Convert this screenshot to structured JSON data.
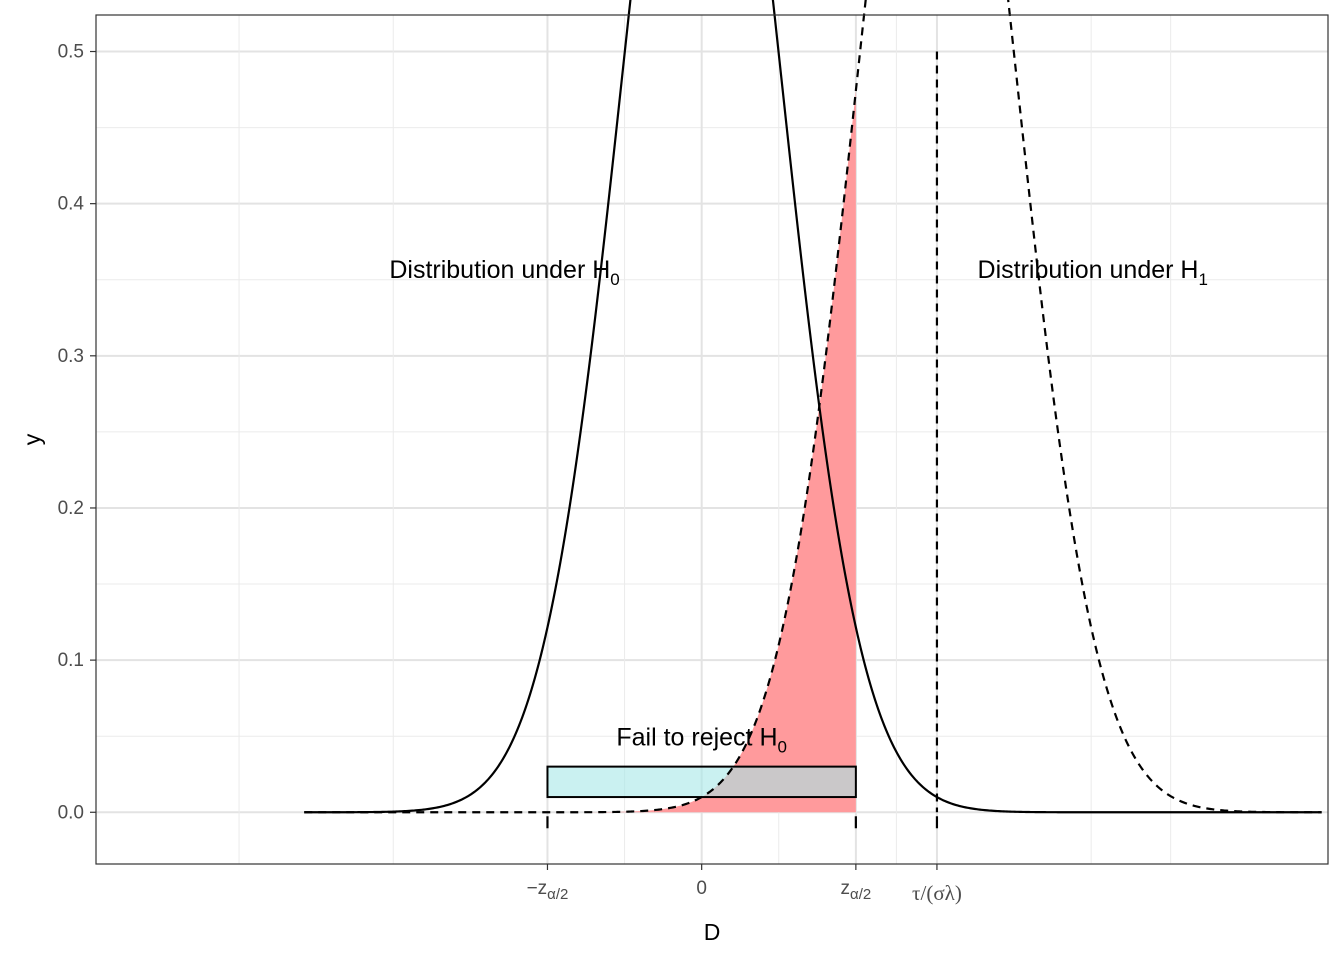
{
  "chart_data": {
    "type": "line",
    "xlabel": "D",
    "ylabel": "y",
    "xlim": [
      -3.81,
      3.94
    ],
    "ylim": [
      -0.034,
      0.524
    ],
    "grid": true,
    "y_ticks": [
      0.0,
      0.1,
      0.2,
      0.3,
      0.4,
      0.5
    ],
    "y_tick_labels": [
      "0.0",
      "0.1",
      "0.2",
      "0.3",
      "0.4",
      "0.5"
    ],
    "x_ticks": [
      {
        "value": -0.97,
        "label": "z_{α/2}",
        "sign": "−",
        "base": "z",
        "sub": "α/2"
      },
      {
        "value": 0,
        "label": "0"
      },
      {
        "value": 0.97,
        "label": "z_{α/2}",
        "sign": "",
        "base": "z",
        "sub": "α/2"
      },
      {
        "value": 1.48,
        "label": "τ/(σλ)"
      }
    ],
    "series": [
      {
        "name": "Distribution under H0",
        "mean": 0,
        "sd": 0.5,
        "x_range": [
          -2.5,
          3.9
        ],
        "style": "solid",
        "color": "#000000"
      },
      {
        "name": "Distribution under H1",
        "mean": 1.48,
        "sd": 0.5,
        "x_range": [
          -2.5,
          3.9
        ],
        "style": "dashed",
        "color": "#000000"
      }
    ],
    "shaded_region": {
      "under": "Distribution under H1",
      "x_from": -2.5,
      "x_to": 0.97,
      "color": "#ff9a9c"
    },
    "reference_line": {
      "x": 1.48,
      "y_from": 0.0,
      "y_to": 0.5,
      "style": "dashed"
    },
    "interval_rect": {
      "x_from": -0.97,
      "x_to": 0.97,
      "y_from": 0.01,
      "y_to": 0.03,
      "color": "#a7e7e8"
    },
    "tick_marks_at": [
      -0.97,
      0.97,
      1.48
    ],
    "annotations": [
      {
        "id": "h0",
        "text": "Distribution under H",
        "sub": "0",
        "x": -1.24,
        "y": 0.351,
        "anchor": "middle"
      },
      {
        "id": "h1",
        "text": "Distribution under H",
        "sub": "1",
        "x": 2.46,
        "y": 0.351,
        "anchor": "middle"
      },
      {
        "id": "fail",
        "text": "Fail to reject H",
        "sub": "0",
        "x": 0.0,
        "y": 0.044,
        "anchor": "middle"
      }
    ]
  }
}
